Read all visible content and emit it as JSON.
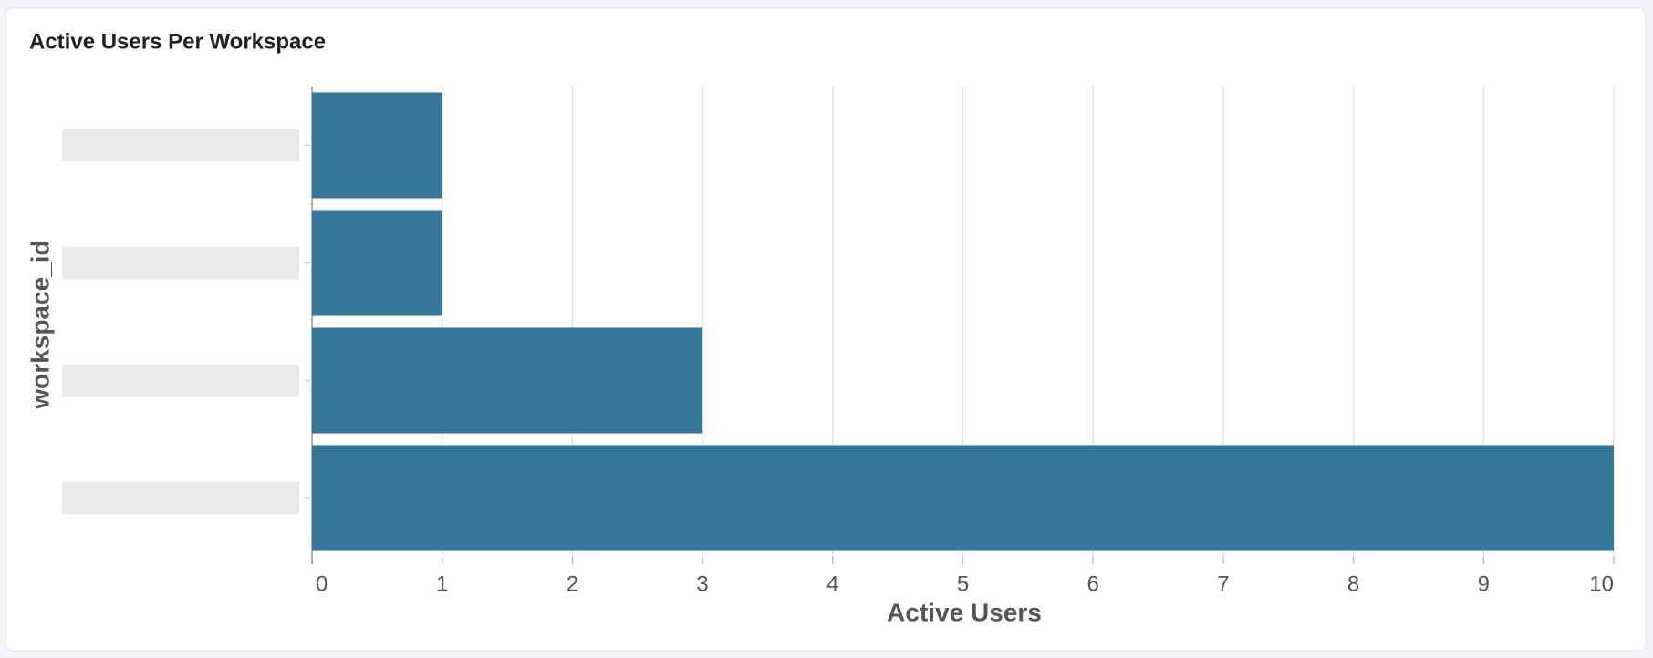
{
  "chart_data": {
    "type": "bar",
    "orientation": "horizontal",
    "title": "Active Users Per Workspace",
    "categories": [
      null,
      null,
      null,
      null
    ],
    "values": [
      1,
      1,
      3,
      10
    ],
    "color": "#37779a",
    "xlim": [
      0,
      10
    ],
    "xticks": [
      0,
      1,
      2,
      3,
      4,
      5,
      6,
      7,
      8,
      9,
      10
    ],
    "grid": true,
    "xlabel": "Active Users",
    "ylabel": "workspace_id"
  }
}
